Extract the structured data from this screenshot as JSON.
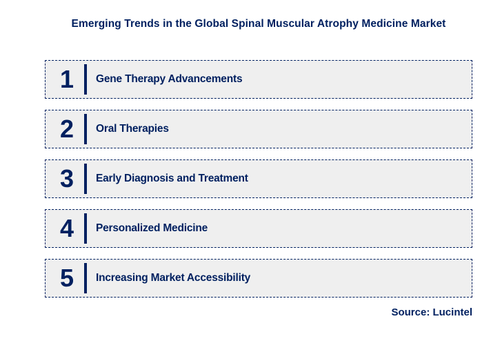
{
  "title": "Emerging Trends in the Global Spinal Muscular Atrophy Medicine Market",
  "source": "Source: Lucintel",
  "colors": {
    "accent_navy": "#002060",
    "box_fill": "#EFEFEF",
    "background": "#FFFFFF"
  },
  "trends": [
    {
      "number": "1",
      "label": "Gene Therapy Advancements"
    },
    {
      "number": "2",
      "label": "Oral Therapies"
    },
    {
      "number": "3",
      "label": "Early Diagnosis and Treatment"
    },
    {
      "number": "4",
      "label": "Personalized Medicine"
    },
    {
      "number": "5",
      "label": "Increasing Market Accessibility"
    }
  ]
}
